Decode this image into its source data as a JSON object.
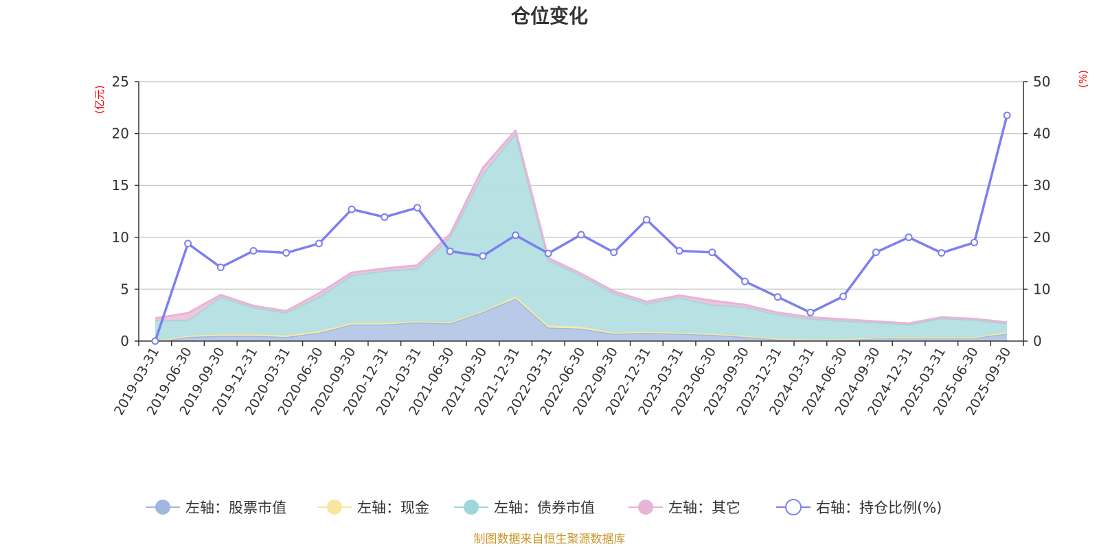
{
  "chart_data": {
    "type": "area",
    "title": "仓位变化",
    "left_unit": "(亿元)",
    "right_unit": "(%)",
    "unit_color": "#ff0000",
    "left_ylim": [
      0,
      25
    ],
    "left_ticks": [
      "0",
      "5",
      "10",
      "15",
      "20",
      "25"
    ],
    "right_ylim": [
      0,
      50
    ],
    "right_ticks": [
      "0",
      "10",
      "20",
      "30",
      "40",
      "50"
    ],
    "categories": [
      "2019-03-31",
      "2019-06-30",
      "2019-09-30",
      "2019-12-31",
      "2020-03-31",
      "2020-06-30",
      "2020-09-30",
      "2020-12-31",
      "2021-03-31",
      "2021-06-30",
      "2021-09-30",
      "2021-12-31",
      "2022-03-31",
      "2022-06-30",
      "2022-09-30",
      "2022-12-31",
      "2023-03-31",
      "2023-06-30",
      "2023-09-30",
      "2023-12-31",
      "2024-03-31",
      "2024-06-30",
      "2024-09-30",
      "2024-12-31",
      "2025-03-31",
      "2025-06-30",
      "2025-09-30"
    ],
    "stacked_series": [
      {
        "name": "左轴：股票市值",
        "fill": "#b5c7e8",
        "line": "#9fb7e0",
        "values": [
          0,
          0.4,
          0.5,
          0.5,
          0.4,
          0.8,
          1.6,
          1.6,
          1.8,
          1.7,
          2.8,
          4.1,
          1.3,
          1.2,
          0.7,
          0.8,
          0.7,
          0.6,
          0.4,
          0.2,
          0.1,
          0.15,
          0.3,
          0.35,
          0.35,
          0.35,
          0.7
        ]
      },
      {
        "name": "左轴：现金",
        "fill": "#f9efb5",
        "line": "#f7e6a0",
        "values": [
          0,
          0.1,
          0.15,
          0.15,
          0.15,
          0.15,
          0.15,
          0.15,
          0.1,
          0.1,
          0.1,
          0.2,
          0.2,
          0.2,
          0.1,
          0.1,
          0.1,
          0.1,
          0.1,
          0.05,
          0.05,
          0.05,
          0.05,
          0.05,
          0.05,
          0.05,
          0.15
        ]
      },
      {
        "name": "左轴：债券市值",
        "fill": "#b3dfe0",
        "line": "#9fd6d8",
        "values": [
          2.0,
          1.5,
          3.6,
          2.6,
          2.2,
          3.3,
          4.6,
          5.0,
          5.1,
          8.2,
          13.2,
          15.7,
          6.3,
          4.9,
          3.8,
          2.7,
          3.4,
          2.8,
          2.8,
          2.3,
          2.0,
          1.75,
          1.45,
          1.2,
          1.8,
          1.65,
          0.85
        ]
      },
      {
        "name": "左轴：其它",
        "fill": "#eec3db",
        "line": "#e8b4d6",
        "values": [
          0.2,
          0.7,
          0.2,
          0.15,
          0.15,
          0.35,
          0.25,
          0.25,
          0.3,
          0.3,
          0.6,
          0.3,
          0.2,
          0.2,
          0.2,
          0.2,
          0.2,
          0.4,
          0.2,
          0.2,
          0.15,
          0.15,
          0.1,
          0.1,
          0.1,
          0.1,
          0.1
        ]
      }
    ],
    "line_series": {
      "name": "右轴：持仓比例(%)",
      "color": "#7b7ff0",
      "values": [
        0,
        18.8,
        14.2,
        17.4,
        17.0,
        18.8,
        25.4,
        23.9,
        25.7,
        17.3,
        16.4,
        20.4,
        16.9,
        20.5,
        17.1,
        23.4,
        17.4,
        17.1,
        11.5,
        8.5,
        5.5,
        8.6,
        17.1,
        20.0,
        17.0,
        19.0,
        43.5
      ]
    },
    "legend": [
      {
        "label": "左轴：股票市值",
        "type": "area",
        "color": "#9fb7e0"
      },
      {
        "label": "左轴：现金",
        "type": "area",
        "color": "#f7e6a0"
      },
      {
        "label": "左轴：债券市值",
        "type": "area",
        "color": "#9fd6d8"
      },
      {
        "label": "左轴：其它",
        "type": "area",
        "color": "#e8b4d6"
      },
      {
        "label": "右轴：持仓比例(%)",
        "type": "line",
        "color": "#7b7ff0"
      }
    ],
    "legend_position": "bottom-center"
  },
  "source_text": "制图数据来自恒生聚源数据库",
  "source_color": "#c8962a"
}
